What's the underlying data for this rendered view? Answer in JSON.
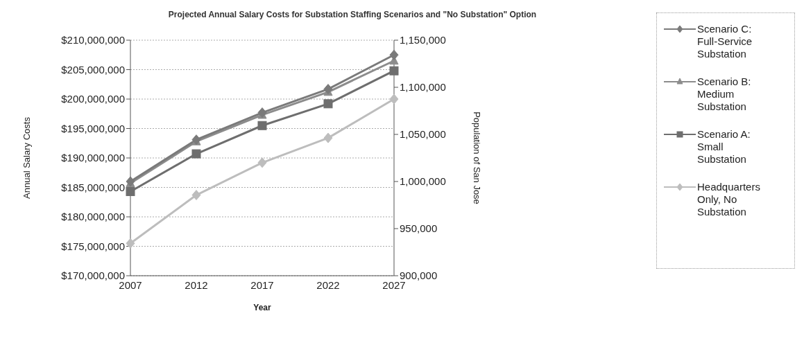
{
  "chart_data": {
    "type": "line",
    "title": "Projected Annual Salary Costs for Substation Staffing Scenarios and \"No Substation\" Option",
    "xlabel": "Year",
    "ylabel": "Annual Salary Costs",
    "y2label": "Population of San Jose",
    "categories": [
      "2007",
      "2012",
      "2017",
      "2022",
      "2027"
    ],
    "series": [
      {
        "name": "Scenario C: Full-Service Substation",
        "color": "#7a7a7a",
        "marker": "diamond",
        "values": [
          186000000,
          193100000,
          197700000,
          201700000,
          207500000
        ]
      },
      {
        "name": "Scenario B: Medium Substation",
        "color": "#8c8c8c",
        "marker": "triangle",
        "values": [
          185700000,
          192800000,
          197300000,
          201200000,
          206500000
        ]
      },
      {
        "name": "Scenario A: Small Substation",
        "color": "#6e6e6e",
        "marker": "square",
        "values": [
          184300000,
          190700000,
          195500000,
          199200000,
          204800000
        ]
      },
      {
        "name": "Headquarters Only, No Substation",
        "color": "#bdbdbd",
        "marker": "diamond",
        "values": [
          175500000,
          183700000,
          189200000,
          193400000,
          200000000
        ]
      }
    ],
    "ylim": [
      170000000,
      210000000
    ],
    "yticks": [
      {
        "value": 170000000,
        "label": "$170,000,000"
      },
      {
        "value": 175000000,
        "label": "$175,000,000"
      },
      {
        "value": 180000000,
        "label": "$180,000,000"
      },
      {
        "value": 185000000,
        "label": "$185,000,000"
      },
      {
        "value": 190000000,
        "label": "$190,000,000"
      },
      {
        "value": 195000000,
        "label": "$195,000,000"
      },
      {
        "value": 200000000,
        "label": "$200,000,000"
      },
      {
        "value": 205000000,
        "label": "$205,000,000"
      },
      {
        "value": 210000000,
        "label": "$210,000,000"
      }
    ],
    "y2lim": [
      900000,
      1150000
    ],
    "y2ticks": [
      {
        "value": 900000,
        "label": "900,000"
      },
      {
        "value": 950000,
        "label": "950,000"
      },
      {
        "value": 1000000,
        "label": "1,000,000"
      },
      {
        "value": 1050000,
        "label": "1,050,000"
      },
      {
        "value": 1100000,
        "label": "1,100,000"
      },
      {
        "value": 1150000,
        "label": "1,150,000"
      }
    ],
    "grid": "y",
    "legend": "right"
  }
}
